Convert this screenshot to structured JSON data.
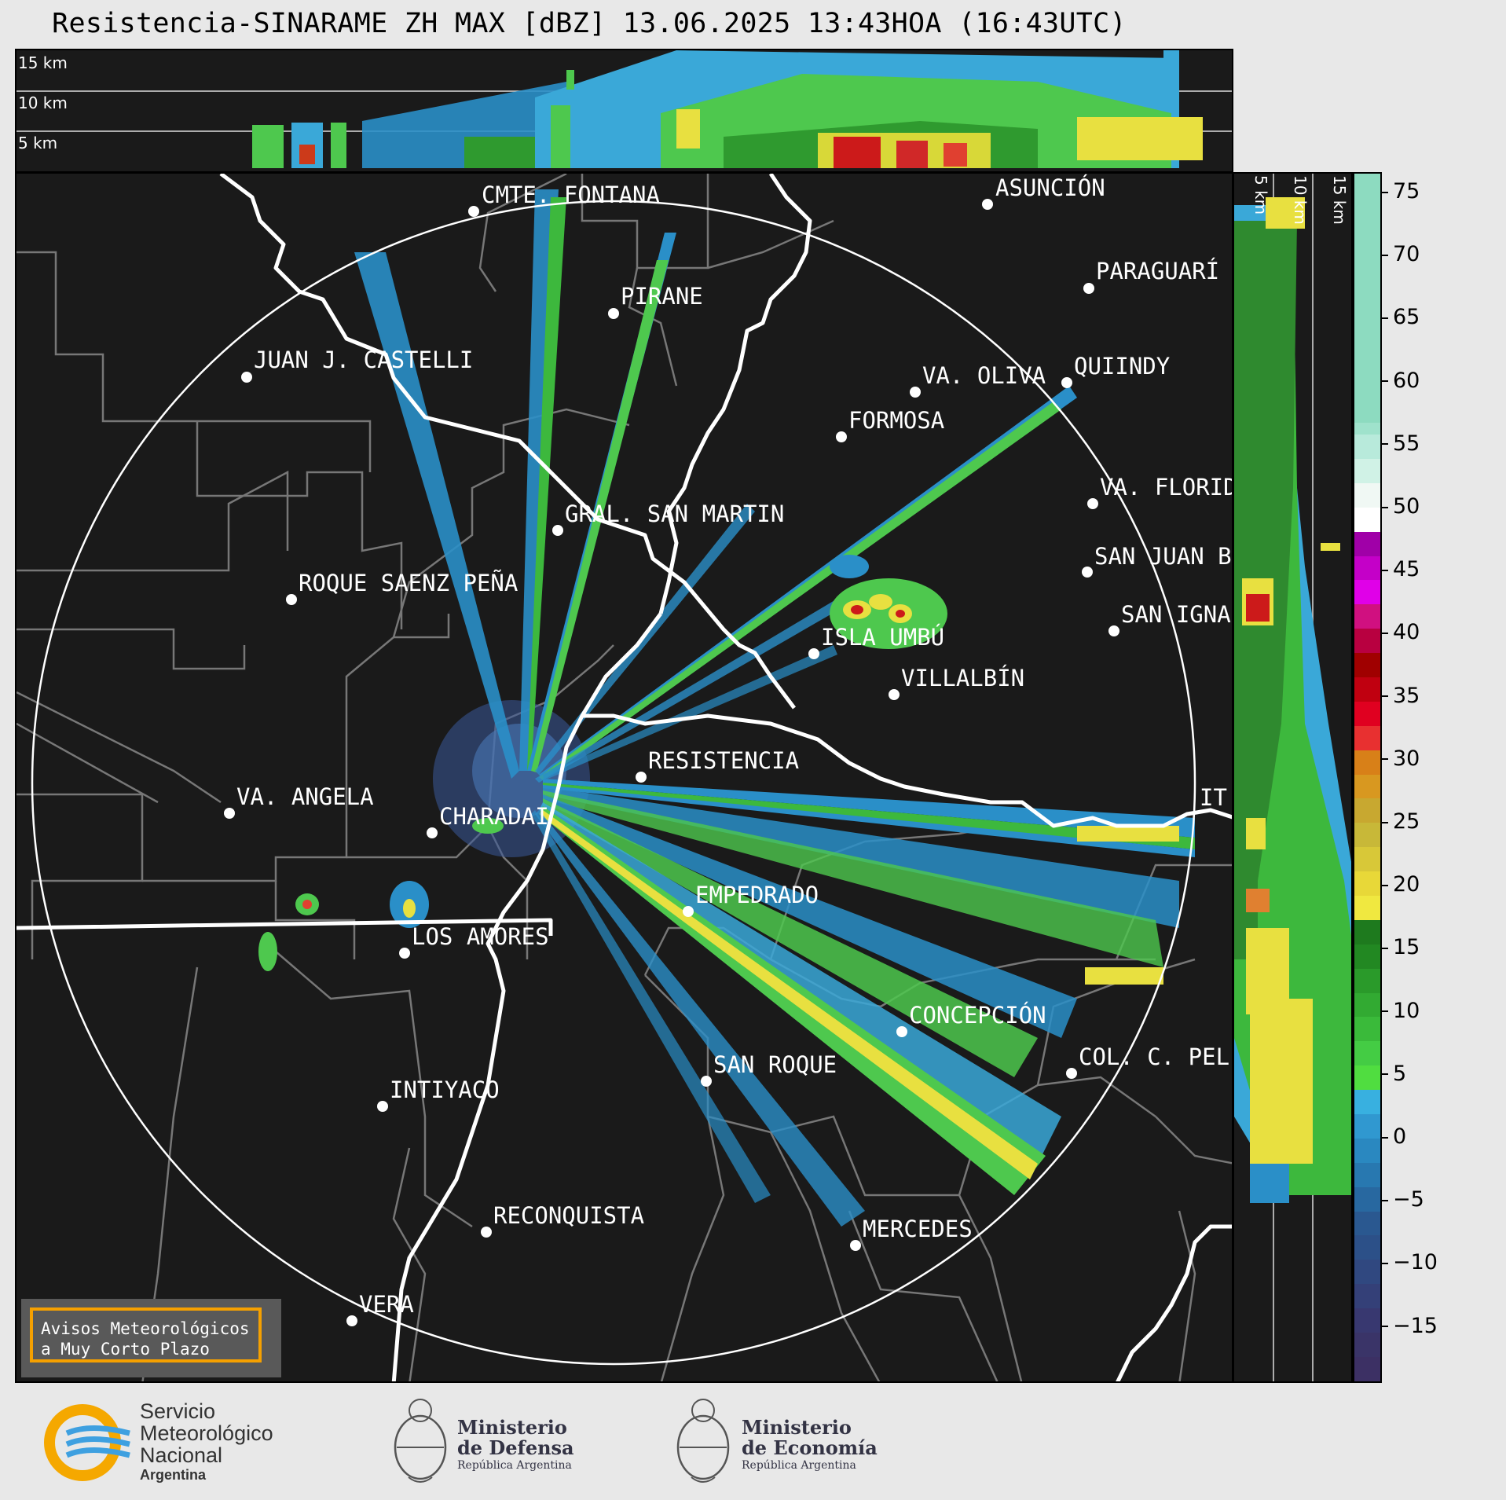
{
  "title": "Resistencia-SINARAME ZH MAX [dBZ] 13.06.2025 13:43HOA (16:43UTC)",
  "top_panel": {
    "altitude_labels": [
      "15 km",
      "10 km",
      "5 km"
    ]
  },
  "side_panel": {
    "altitude_labels": [
      "5 km",
      "10 km",
      "15 km"
    ]
  },
  "colorbar": {
    "ticks": [
      "75",
      "70",
      "65",
      "60",
      "55",
      "50",
      "45",
      "40",
      "35",
      "30",
      "25",
      "20",
      "15",
      "10",
      "5",
      "0",
      "−5",
      "−10",
      "−15"
    ],
    "unit": "dBZ"
  },
  "cities": [
    {
      "name": "CMTE. FONTANA"
    },
    {
      "name": "ASUNCIÓN"
    },
    {
      "name": "PARAGUARÍ"
    },
    {
      "name": "PIRANE"
    },
    {
      "name": "JUAN J. CASTELLI"
    },
    {
      "name": "VA. OLIVA"
    },
    {
      "name": "QUIINDY"
    },
    {
      "name": "FORMOSA"
    },
    {
      "name": "VA. FLORID"
    },
    {
      "name": "GRAL. SAN MARTIN"
    },
    {
      "name": "SAN JUAN B"
    },
    {
      "name": "ROQUE SAENZ PEÑA"
    },
    {
      "name": "SAN IGNA"
    },
    {
      "name": "ISLA UMBÚ"
    },
    {
      "name": "VILLALBÍN"
    },
    {
      "name": "RESISTENCIA"
    },
    {
      "name": "VA. ANGELA"
    },
    {
      "name": "CHARADAI"
    },
    {
      "name": "IT"
    },
    {
      "name": "EMPEDRADO"
    },
    {
      "name": "LOS AMORES"
    },
    {
      "name": "CONCEPCIÓN"
    },
    {
      "name": "SAN ROQUE"
    },
    {
      "name": "COL. C. PEL"
    },
    {
      "name": "INTIYACO"
    },
    {
      "name": "RECONQUISTA"
    },
    {
      "name": "MERCEDES"
    },
    {
      "name": "VERA"
    }
  ],
  "warning_box": {
    "line1": "Avisos Meteorológicos",
    "line2": "a Muy Corto Plazo"
  },
  "logos": {
    "smn": {
      "line1": "Servicio",
      "line2": "Meteorológico",
      "line3": "Nacional",
      "line4": "Argentina"
    },
    "defensa": {
      "line1": "Ministerio",
      "line2": "de Defensa",
      "line3": "República Argentina"
    },
    "economia": {
      "line1": "Ministerio",
      "line2": "de Economía",
      "line3": "República Argentina"
    }
  },
  "colors": {
    "background": "#1a1a1a",
    "range_ring": "#ffffff",
    "rivers": "#ffffff",
    "borders": "#777777",
    "warning_border": "#f5a000"
  }
}
